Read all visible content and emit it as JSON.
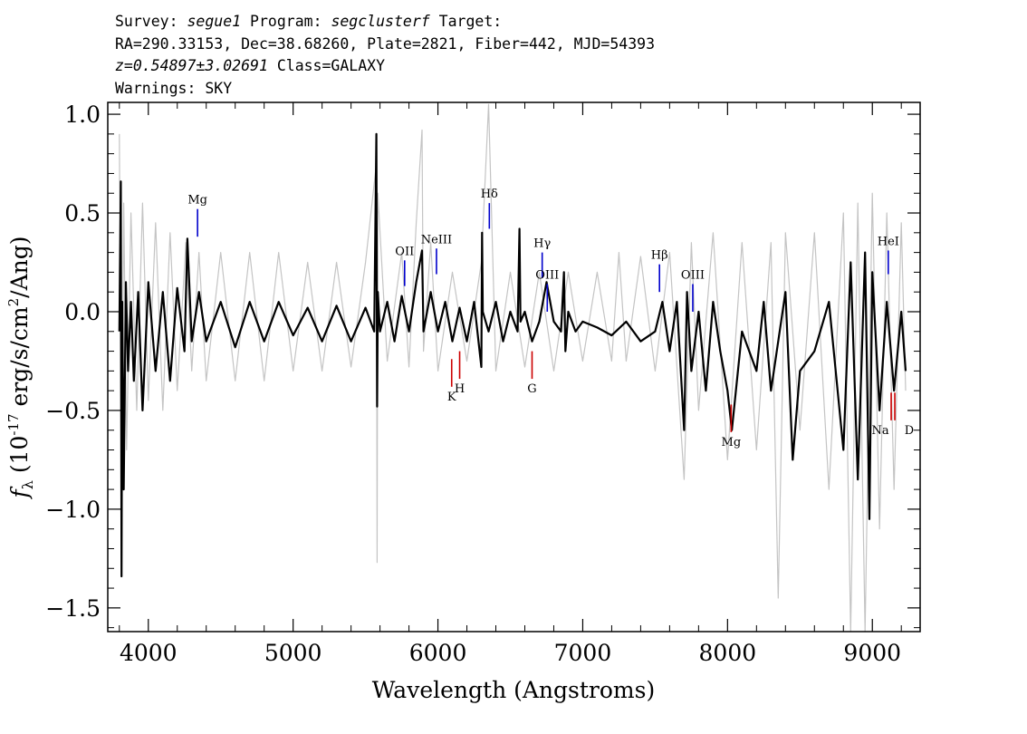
{
  "header": {
    "line1": {
      "survey_label": "Survey: ",
      "survey": "segue1",
      "program_label": " Program: ",
      "program": "segclusterf",
      "target_label": " Target:"
    },
    "line2": "RA=290.33153, Dec=38.68260, Plate=2821, Fiber=442, MJD=54393",
    "line3": {
      "z": "z=0.54897±3.02691",
      "class": " Class=GALAXY"
    },
    "line4": "Warnings: SKY"
  },
  "chart_data": {
    "type": "line",
    "xlabel": "Wavelength (Angstroms)",
    "ylabel": "f",
    "ylabel_sub": "λ",
    "ylabel_units": " (10",
    "ylabel_exp": "-17",
    "ylabel_units2": " erg/s/cm",
    "ylabel_exp2": "2",
    "ylabel_units3": "/Ang)",
    "xlim": [
      3720,
      9330
    ],
    "ylim": [
      -1.62,
      1.06
    ],
    "xticks": [
      4000,
      5000,
      6000,
      7000,
      8000,
      9000
    ],
    "xtick_labels": [
      "4000",
      "5000",
      "6000",
      "7000",
      "8000",
      "9000"
    ],
    "yticks": [
      -1.5,
      -1.0,
      -0.5,
      0.0,
      0.5,
      1.0
    ],
    "ytick_labels": [
      "−1.5",
      "−1.0",
      "−0.5",
      "0.0",
      "0.5",
      "1.0"
    ],
    "series": [
      {
        "role": "error",
        "color": "#c4c4c4",
        "x": [
          3800,
          3815,
          3830,
          3850,
          3880,
          3920,
          3960,
          4000,
          4050,
          4100,
          4150,
          4200,
          4260,
          4300,
          4350,
          4400,
          4500,
          4600,
          4700,
          4800,
          4900,
          5000,
          5100,
          5200,
          5300,
          5400,
          5500,
          5575,
          5580,
          5585,
          5650,
          5750,
          5800,
          5850,
          5890,
          5900,
          5950,
          6000,
          6100,
          6200,
          6300,
          6350,
          6400,
          6500,
          6600,
          6700,
          6800,
          6900,
          7000,
          7100,
          7200,
          7250,
          7300,
          7400,
          7500,
          7600,
          7700,
          7750,
          7800,
          7900,
          8000,
          8100,
          8200,
          8300,
          8350,
          8400,
          8500,
          8600,
          8700,
          8800,
          8850,
          8900,
          8950,
          9000,
          9050,
          9100,
          9150,
          9200,
          9230
        ],
        "values": [
          0.9,
          -1.1,
          0.55,
          -0.7,
          0.5,
          -0.5,
          0.55,
          -0.45,
          0.45,
          -0.5,
          0.4,
          -0.4,
          0.35,
          -0.3,
          0.3,
          -0.35,
          0.3,
          -0.35,
          0.3,
          -0.35,
          0.3,
          -0.3,
          0.25,
          -0.3,
          0.25,
          -0.28,
          0.25,
          0.75,
          -1.27,
          0.6,
          -0.25,
          0.3,
          -0.28,
          0.45,
          0.92,
          -0.2,
          0.35,
          -0.3,
          0.2,
          -0.25,
          0.25,
          1.05,
          -0.3,
          0.2,
          -0.28,
          0.2,
          -0.3,
          0.2,
          -0.25,
          0.2,
          -0.25,
          0.3,
          -0.25,
          0.28,
          -0.3,
          0.3,
          -0.85,
          0.35,
          -0.5,
          0.4,
          -0.75,
          0.35,
          -0.7,
          0.35,
          -1.45,
          0.4,
          -0.6,
          0.4,
          -0.9,
          0.5,
          -1.62,
          0.55,
          -1.62,
          0.6,
          -1.1,
          0.5,
          -0.9,
          0.45,
          -0.4
        ]
      },
      {
        "role": "flux",
        "color": "#000000",
        "x": [
          3800,
          3810,
          3815,
          3820,
          3830,
          3845,
          3860,
          3880,
          3900,
          3930,
          3960,
          4000,
          4050,
          4100,
          4150,
          4200,
          4250,
          4270,
          4300,
          4350,
          4400,
          4500,
          4600,
          4700,
          4800,
          4900,
          5000,
          5100,
          5200,
          5300,
          5400,
          5500,
          5560,
          5575,
          5580,
          5585,
          5600,
          5650,
          5700,
          5750,
          5800,
          5850,
          5890,
          5900,
          5950,
          6000,
          6050,
          6100,
          6150,
          6200,
          6250,
          6300,
          6305,
          6310,
          6350,
          6400,
          6450,
          6500,
          6550,
          6563,
          6570,
          6600,
          6650,
          6700,
          6750,
          6800,
          6850,
          6870,
          6880,
          6900,
          6950,
          7000,
          7100,
          7200,
          7300,
          7400,
          7500,
          7550,
          7600,
          7650,
          7700,
          7720,
          7750,
          7800,
          7850,
          7900,
          7950,
          8000,
          8030,
          8100,
          8200,
          8250,
          8300,
          8400,
          8450,
          8500,
          8600,
          8700,
          8800,
          8850,
          8900,
          8950,
          8980,
          9000,
          9050,
          9100,
          9150,
          9200,
          9230
        ],
        "values": [
          -0.1,
          0.66,
          -1.34,
          0.05,
          -0.9,
          0.15,
          -0.3,
          0.05,
          -0.35,
          0.1,
          -0.5,
          0.15,
          -0.3,
          0.1,
          -0.35,
          0.12,
          -0.2,
          0.37,
          -0.15,
          0.1,
          -0.15,
          0.05,
          -0.18,
          0.05,
          -0.15,
          0.05,
          -0.12,
          0.02,
          -0.15,
          0.03,
          -0.15,
          0.02,
          -0.1,
          0.9,
          -0.48,
          0.1,
          -0.1,
          0.05,
          -0.15,
          0.08,
          -0.1,
          0.15,
          0.31,
          -0.1,
          0.1,
          -0.1,
          0.05,
          -0.15,
          0.02,
          -0.15,
          0.05,
          -0.28,
          0.4,
          0.0,
          -0.1,
          0.05,
          -0.15,
          0.0,
          -0.1,
          0.42,
          -0.05,
          0.0,
          -0.15,
          -0.05,
          0.15,
          -0.05,
          -0.1,
          0.2,
          -0.2,
          0.0,
          -0.1,
          -0.05,
          -0.08,
          -0.12,
          -0.05,
          -0.15,
          -0.1,
          0.05,
          -0.2,
          0.05,
          -0.6,
          0.1,
          -0.3,
          0.0,
          -0.4,
          0.05,
          -0.2,
          -0.4,
          -0.6,
          -0.1,
          -0.3,
          0.05,
          -0.4,
          0.1,
          -0.75,
          -0.3,
          -0.2,
          0.05,
          -0.7,
          0.25,
          -0.85,
          0.3,
          -1.05,
          0.2,
          -0.5,
          0.05,
          -0.4,
          0.0,
          -0.3
        ]
      }
    ],
    "lines": [
      {
        "label": "Mg",
        "x": 4340,
        "y1": 0.38,
        "y2": 0.52,
        "color": "#0000cc",
        "label_pos": "above"
      },
      {
        "label": "OII",
        "x": 5770,
        "y1": 0.13,
        "y2": 0.26,
        "color": "#0000cc",
        "label_pos": "above"
      },
      {
        "label": "NeIII",
        "x": 5990,
        "y1": 0.19,
        "y2": 0.32,
        "color": "#0000cc",
        "label_pos": "above"
      },
      {
        "label": "Hδ",
        "x": 6355,
        "y1": 0.42,
        "y2": 0.55,
        "color": "#0000cc",
        "label_pos": "above"
      },
      {
        "label": "Hγ",
        "x": 6720,
        "y1": 0.17,
        "y2": 0.3,
        "color": "#0000cc",
        "label_pos": "above"
      },
      {
        "label": "OIII",
        "x": 6755,
        "y1": 0.0,
        "y2": 0.14,
        "color": "#0000cc",
        "label_pos": "above"
      },
      {
        "label": "Hβ",
        "x": 7530,
        "y1": 0.1,
        "y2": 0.24,
        "color": "#0000cc",
        "label_pos": "above"
      },
      {
        "label": "OIII",
        "x": 7760,
        "y1": 0.0,
        "y2": 0.14,
        "color": "#0000cc",
        "label_pos": "above"
      },
      {
        "label": "HeI",
        "x": 9110,
        "y1": 0.19,
        "y2": 0.31,
        "color": "#0000cc",
        "label_pos": "above"
      },
      {
        "label": "K",
        "x": 6095,
        "y1": -0.24,
        "y2": -0.38,
        "color": "#cc0000",
        "label_pos": "below"
      },
      {
        "label": "H",
        "x": 6150,
        "y1": -0.2,
        "y2": -0.34,
        "color": "#cc0000",
        "label_pos": "below"
      },
      {
        "label": "G",
        "x": 6650,
        "y1": -0.2,
        "y2": -0.34,
        "color": "#cc0000",
        "label_pos": "below"
      },
      {
        "label": "Mg",
        "x": 8025,
        "y1": -0.47,
        "y2": -0.61,
        "color": "#cc0000",
        "label_pos": "below"
      },
      {
        "label": "Na",
        "x": 9130,
        "y1": -0.41,
        "y2": -0.55,
        "color": "#cc0000",
        "label_pos": "below"
      },
      {
        "label": "D",
        "x": 9155,
        "y1": -0.41,
        "y2": -0.55,
        "color": "#cc0000",
        "label_pos": "none"
      }
    ]
  }
}
